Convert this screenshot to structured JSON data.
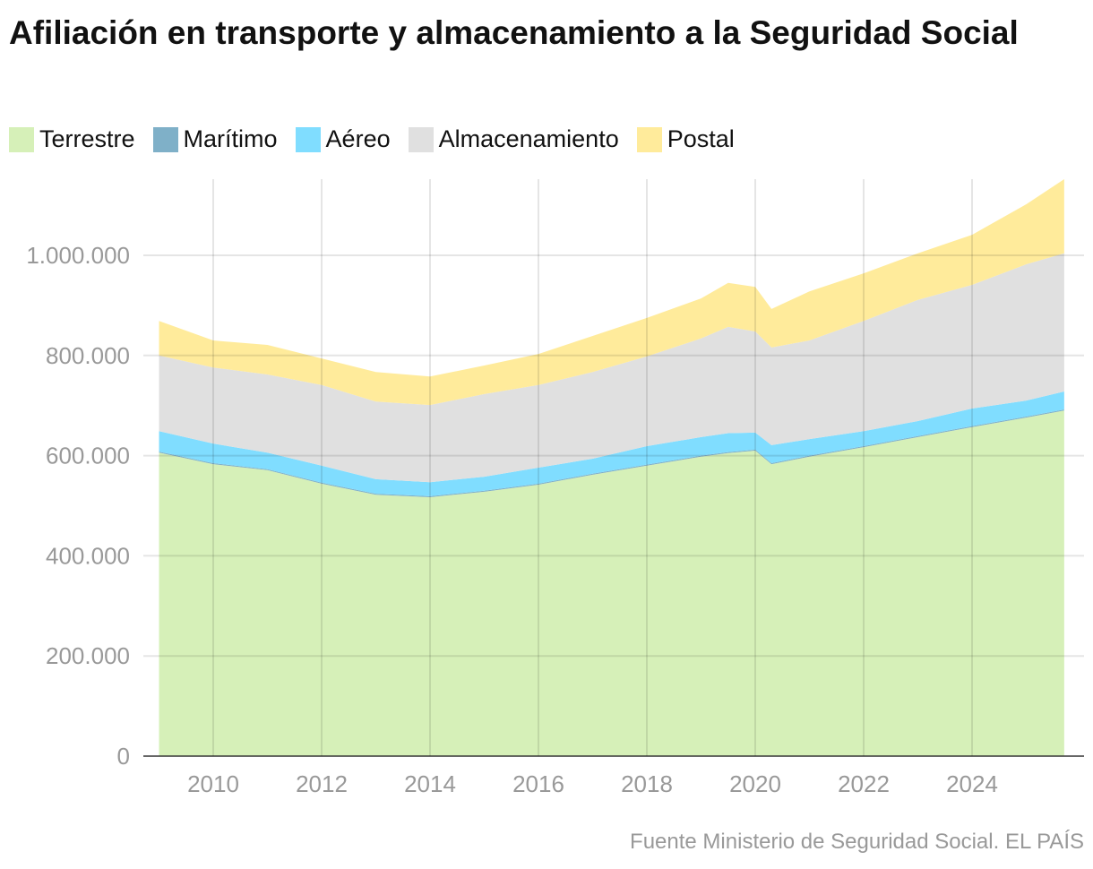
{
  "chart_data": {
    "type": "area",
    "stacked": true,
    "title": "Afiliación en transporte y almacenamiento a la Seguridad Social",
    "source": "Fuente Ministerio de Seguridad Social. EL PAÍS",
    "xlim": [
      2009.0,
      2025.7
    ],
    "ylim": [
      0,
      1150000
    ],
    "x_ticks": [
      "2010",
      "2012",
      "2014",
      "2016",
      "2018",
      "2020",
      "2022",
      "2024"
    ],
    "y_ticks": [
      "0",
      "200.000",
      "400.000",
      "600.000",
      "800.000",
      "1.000.000"
    ],
    "grid": true,
    "legend": "top-left",
    "x": [
      2009.0,
      2010.0,
      2011.0,
      2012.0,
      2013.0,
      2014.0,
      2015.0,
      2016.0,
      2017.0,
      2018.0,
      2019.0,
      2019.5,
      2020.0,
      2020.3,
      2021.0,
      2022.0,
      2023.0,
      2024.0,
      2025.0,
      2025.7
    ],
    "series": [
      {
        "name": "Terrestre",
        "color": "#d6f0b8",
        "values": [
          606000,
          583000,
          571000,
          544000,
          522000,
          517000,
          528000,
          542000,
          562000,
          580000,
          598000,
          605000,
          610000,
          583000,
          598000,
          617000,
          637000,
          657000,
          676000,
          690000
        ]
      },
      {
        "name": "Marítimo",
        "color": "#7fb0c8",
        "values": [
          2000,
          2000,
          2000,
          2000,
          2000,
          2000,
          2000,
          2000,
          2000,
          2000,
          2000,
          2000,
          2000,
          2000,
          2000,
          2000,
          2000,
          2000,
          2000,
          2000
        ]
      },
      {
        "name": "Aéreo",
        "color": "#80ddff",
        "values": [
          41000,
          39000,
          33000,
          34000,
          29000,
          28000,
          28000,
          32000,
          30000,
          37000,
          37000,
          38000,
          34000,
          36000,
          33000,
          30000,
          30000,
          35000,
          32000,
          36000
        ]
      },
      {
        "name": "Almacenamiento",
        "color": "#e0e0e0",
        "values": [
          151000,
          152000,
          156000,
          161000,
          155000,
          154000,
          165000,
          165000,
          173000,
          179000,
          197000,
          212000,
          202000,
          195000,
          197000,
          220000,
          242000,
          247000,
          272000,
          276000
        ]
      },
      {
        "name": "Postal",
        "color": "#ffeb9b",
        "values": [
          69000,
          54000,
          59000,
          53000,
          59000,
          57000,
          57000,
          62000,
          72000,
          77000,
          80000,
          88000,
          89000,
          77000,
          98000,
          95000,
          93000,
          100000,
          120000,
          148000
        ]
      }
    ]
  }
}
